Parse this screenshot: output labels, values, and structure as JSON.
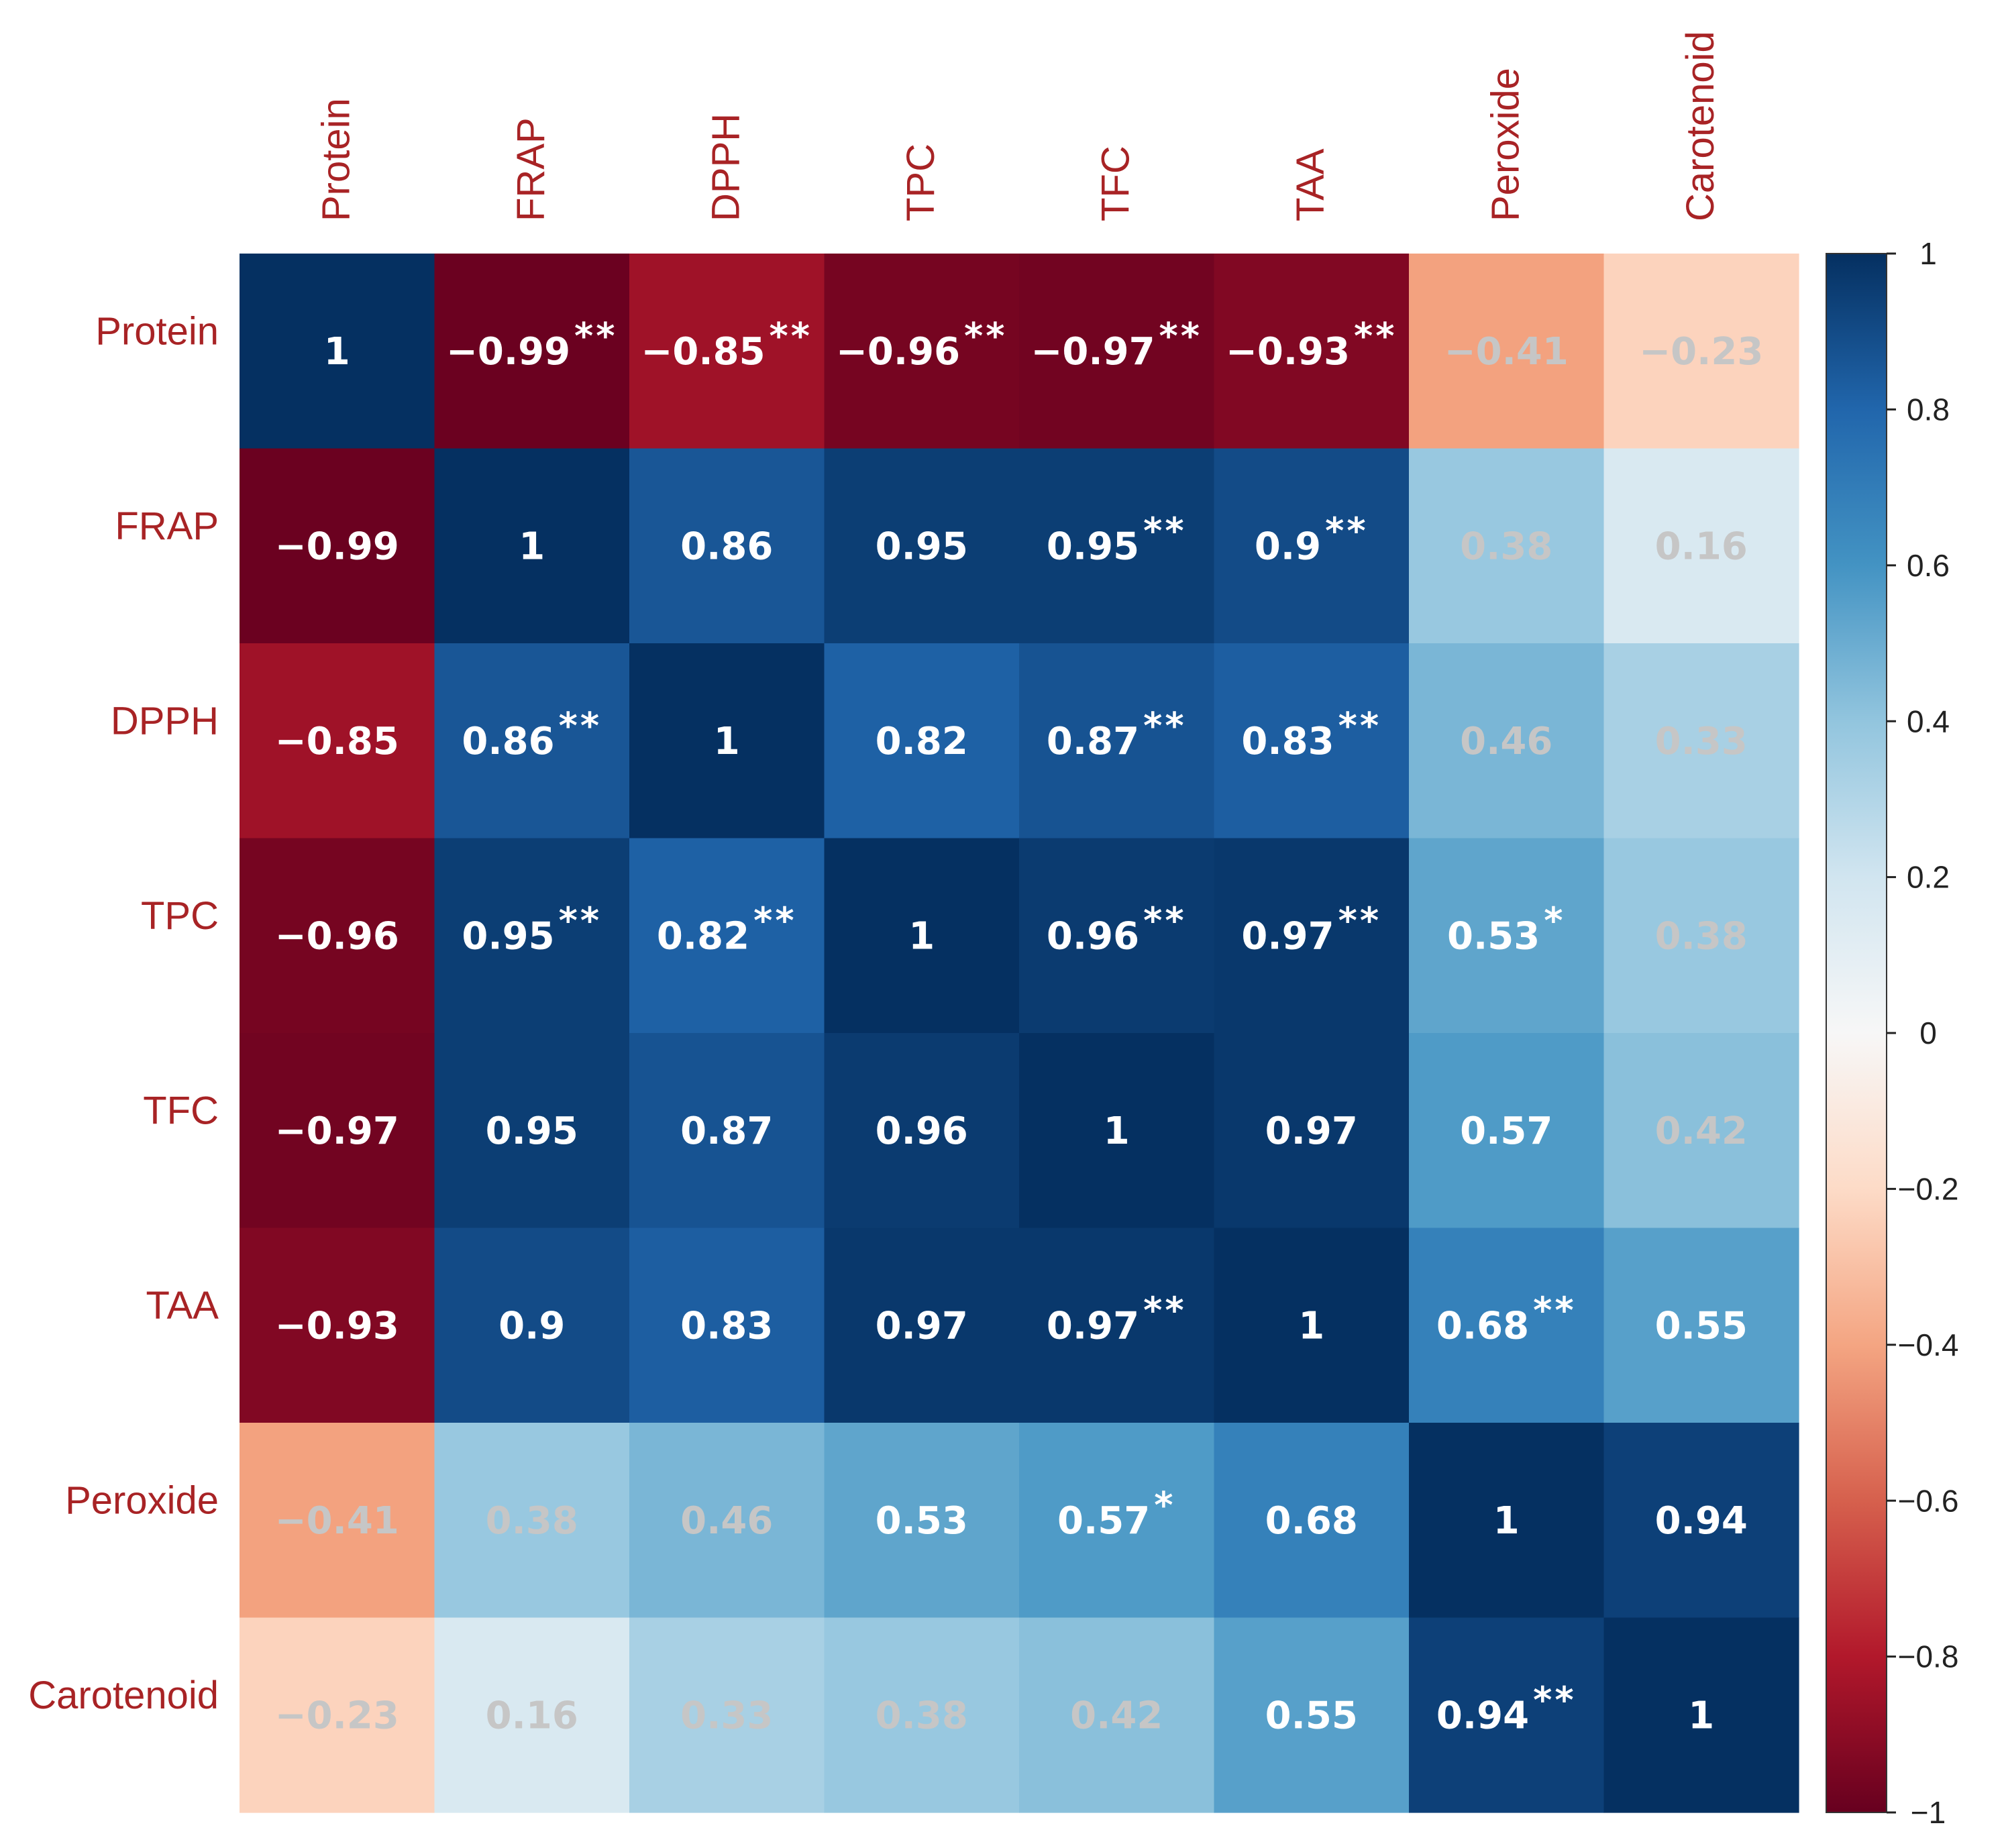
{
  "chart_data": {
    "type": "heatmap",
    "title": "",
    "xlabel": "",
    "ylabel": "",
    "row_labels": [
      "Protein",
      "FRAP",
      "DPPH",
      "TPC",
      "TFC",
      "TAA",
      "Peroxide",
      "Carotenoid"
    ],
    "col_labels": [
      "Protein",
      "FRAP",
      "DPPH",
      "TPC",
      "TFC",
      "TAA",
      "Peroxide",
      "Carotenoid"
    ],
    "values": [
      [
        1,
        -0.99,
        -0.85,
        -0.96,
        -0.97,
        -0.93,
        -0.41,
        -0.23
      ],
      [
        -0.99,
        1,
        0.86,
        0.95,
        0.95,
        0.9,
        0.38,
        0.16
      ],
      [
        -0.85,
        0.86,
        1,
        0.82,
        0.87,
        0.83,
        0.46,
        0.33
      ],
      [
        -0.96,
        0.95,
        0.82,
        1,
        0.96,
        0.97,
        0.53,
        0.38
      ],
      [
        -0.97,
        0.95,
        0.87,
        0.96,
        1,
        0.97,
        0.57,
        0.42
      ],
      [
        -0.93,
        0.9,
        0.83,
        0.97,
        0.97,
        1,
        0.68,
        0.55
      ],
      [
        -0.41,
        0.38,
        0.46,
        0.53,
        0.57,
        0.68,
        1,
        0.94
      ],
      [
        -0.23,
        0.16,
        0.33,
        0.38,
        0.42,
        0.55,
        0.94,
        1
      ]
    ],
    "cell_text": [
      [
        "1",
        "−0.99",
        "−0.85",
        "−0.96",
        "−0.97",
        "−0.93",
        "−0.41",
        "−0.23"
      ],
      [
        "−0.99",
        "1",
        "0.86",
        "0.95",
        "0.95",
        "0.9",
        "0.38",
        "0.16"
      ],
      [
        "−0.85",
        "0.86",
        "1",
        "0.82",
        "0.87",
        "0.83",
        "0.46",
        "0.33"
      ],
      [
        "−0.96",
        "0.95",
        "0.82",
        "1",
        "0.96",
        "0.97",
        "0.53",
        "0.38"
      ],
      [
        "−0.97",
        "0.95",
        "0.87",
        "0.96",
        "1",
        "0.97",
        "0.57",
        "0.42"
      ],
      [
        "−0.93",
        "0.9",
        "0.83",
        "0.97",
        "0.97",
        "1",
        "0.68",
        "0.55"
      ],
      [
        "−0.41",
        "0.38",
        "0.46",
        "0.53",
        "0.57",
        "0.68",
        "1",
        "0.94"
      ],
      [
        "−0.23",
        "0.16",
        "0.33",
        "0.38",
        "0.42",
        "0.55",
        "0.94",
        "1"
      ]
    ],
    "significance": [
      [
        "",
        "**",
        "**",
        "**",
        "**",
        "**",
        "",
        ""
      ],
      [
        "",
        "",
        "",
        "",
        "**",
        "**",
        "",
        ""
      ],
      [
        "",
        "**",
        "",
        "",
        "**",
        "**",
        "",
        ""
      ],
      [
        "",
        "**",
        "**",
        "",
        "**",
        "**",
        "*",
        ""
      ],
      [
        "",
        "",
        "",
        "",
        "",
        "",
        "",
        ""
      ],
      [
        "",
        "",
        "",
        "",
        "**",
        "",
        "**",
        ""
      ],
      [
        "",
        "",
        "",
        "",
        "*",
        "",
        "",
        ""
      ],
      [
        "",
        "",
        "",
        "",
        "",
        "",
        "**",
        ""
      ]
    ],
    "color_scale": {
      "name": "RdBu",
      "min": -1,
      "max": 1,
      "stops": [
        "#67001f",
        "#b2182b",
        "#d6604d",
        "#f4a582",
        "#fddbc7",
        "#f7f7f7",
        "#d1e5f0",
        "#92c5de",
        "#4393c3",
        "#2166ac",
        "#053061"
      ]
    },
    "colorbar_ticks": [
      1,
      0.8,
      0.6,
      0.4,
      0.2,
      0,
      -0.2,
      -0.4,
      -0.6,
      -0.8,
      -1
    ],
    "colorbar_tick_labels": [
      "1",
      "0.8",
      "0.6",
      "0.4",
      "0.2",
      "0",
      "−0.2",
      "−0.4",
      "−0.6",
      "−0.8",
      "−1"
    ],
    "legend_position": "right"
  },
  "colors": {
    "label_color": "#a82325",
    "strong_text": "#ffffff",
    "faded_text": "#c6c6c6"
  }
}
